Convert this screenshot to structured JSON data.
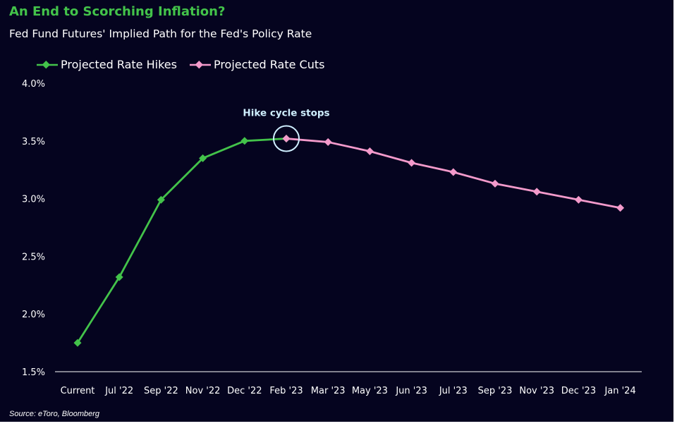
{
  "title": "An End to Scorching Inflation?",
  "subtitle": "Fed Fund Futures' Implied Path for the Fed's Policy Rate",
  "source": "Source: eToro, Bloomberg",
  "colors": {
    "background": "#05041f",
    "hikes": "#43c34a",
    "cuts": "#f39acb",
    "annotation": "#cfefff"
  },
  "chart_data": {
    "type": "line",
    "title": "",
    "xlabel": "",
    "ylabel": "",
    "ylim": [
      1.5,
      4.0
    ],
    "y_ticks": [
      "1.5%",
      "2.0%",
      "2.5%",
      "3.0%",
      "3.5%",
      "4.0%"
    ],
    "categories": [
      "Current",
      "Jul '22",
      "Sep '22",
      "Nov '22",
      "Dec '22",
      "Feb '23",
      "Mar '23",
      "May '23",
      "Jun '23",
      "Jul '23",
      "Sep '23",
      "Nov '23",
      "Dec '23",
      "Jan '24"
    ],
    "grid": false,
    "legend_position": "top-left",
    "series": [
      {
        "name": "Projected Rate Hikes",
        "values": [
          1.75,
          2.32,
          2.99,
          3.35,
          3.5,
          3.52,
          null,
          null,
          null,
          null,
          null,
          null,
          null,
          null
        ]
      },
      {
        "name": "Projected Rate Cuts",
        "values": [
          null,
          null,
          null,
          null,
          null,
          3.52,
          3.49,
          3.41,
          3.31,
          3.23,
          3.13,
          3.06,
          2.99,
          2.92
        ]
      }
    ],
    "annotations": [
      {
        "text": "Hike cycle stops",
        "category": "Feb '23",
        "value": 3.52
      }
    ]
  }
}
